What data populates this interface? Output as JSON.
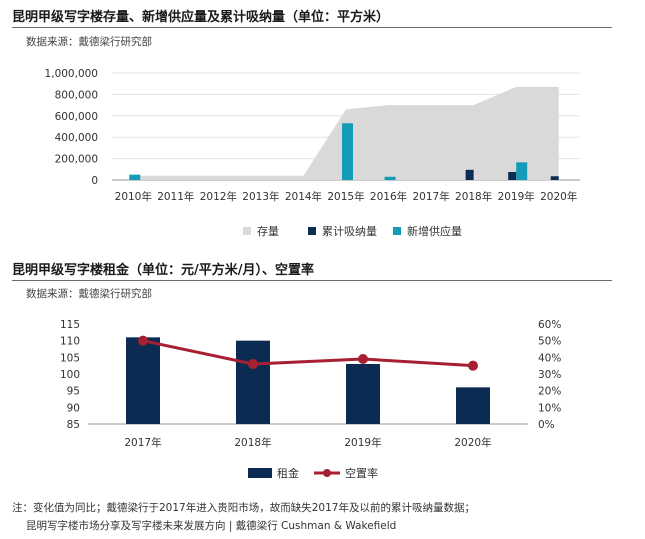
{
  "section1": {
    "title": "昆明甲级写字楼存量、新增供应量及累计吸纳量（单位：平方米）",
    "source": "数据来源：戴德梁行研究部"
  },
  "section2": {
    "title": "昆明甲级写字楼租金（单位：元/平方米/月）、空置率",
    "source": "数据来源：戴德梁行研究部"
  },
  "footer": {
    "note": "注：变化值为同比；戴德梁行于2017年进入贵阳市场，故而缺失2017年及以前的累计吸纳量数据；",
    "credit": "昆明写字楼市场分享及写字楼未来发展方向 | 戴德梁行 Cushman & Wakefield"
  },
  "colors": {
    "stock": "#d9d9d9",
    "absorption": "#0c2b52",
    "supply": "#149bb5",
    "rent": "#0c2b52",
    "vacancy": "#a61f32"
  },
  "chart_data": [
    {
      "type": "area",
      "title": "昆明甲级写字楼存量、新增供应量及累计吸纳量（单位：平方米）",
      "categories": [
        "2010年",
        "2011年",
        "2012年",
        "2013年",
        "2014年",
        "2015年",
        "2016年",
        "2017年",
        "2018年",
        "2019年",
        "2020年"
      ],
      "yticks": [
        "0",
        "200,000",
        "400,000",
        "600,000",
        "800,000",
        "1,000,000"
      ],
      "ylim": [
        0,
        1000000
      ],
      "series": [
        {
          "name": "存量",
          "type": "area",
          "values": [
            40000,
            40000,
            40000,
            40000,
            40000,
            660000,
            700000,
            700000,
            700000,
            870000,
            870000
          ]
        },
        {
          "name": "累计吸纳量",
          "type": "bar",
          "values": [
            0,
            0,
            0,
            0,
            0,
            0,
            0,
            0,
            95000,
            75000,
            35000
          ]
        },
        {
          "name": "新增供应量",
          "type": "bar",
          "values": [
            50000,
            0,
            0,
            0,
            0,
            530000,
            30000,
            0,
            0,
            165000,
            0
          ]
        }
      ],
      "legend": [
        "存量",
        "累计吸纳量",
        "新增供应量"
      ]
    },
    {
      "type": "bar",
      "title": "昆明甲级写字楼租金（单位：元/平方米/月）、空置率",
      "categories": [
        "2017年",
        "2018年",
        "2019年",
        "2020年"
      ],
      "yticks_left": [
        "85",
        "90",
        "95",
        "100",
        "105",
        "110",
        "115"
      ],
      "yticks_right": [
        "0%",
        "10%",
        "20%",
        "30%",
        "40%",
        "50%",
        "60%"
      ],
      "ylim_left": [
        85,
        115
      ],
      "ylim_right": [
        0,
        60
      ],
      "series": [
        {
          "name": "租金",
          "type": "bar",
          "axis": "left",
          "values": [
            111,
            110,
            103,
            96
          ]
        },
        {
          "name": "空置率",
          "type": "line",
          "axis": "right",
          "values": [
            50,
            36,
            39,
            35
          ]
        }
      ],
      "legend": [
        "租金",
        "空置率"
      ]
    }
  ]
}
